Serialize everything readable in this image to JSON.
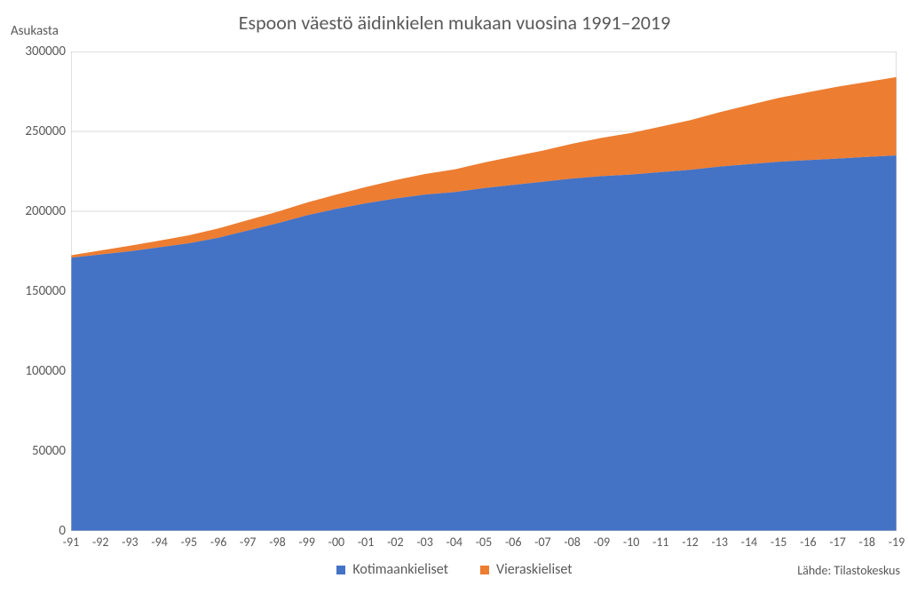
{
  "chart": {
    "type": "area-stacked",
    "title": "Espoon väestö äidinkielen mukaan vuosina 1991–2019",
    "title_fontsize": 22,
    "title_color": "#595959",
    "ylabel": "Asukasta",
    "ylabel_fontsize": 15,
    "ylabel_color": "#595959",
    "background_color": "#ffffff",
    "plot_border_color": "#bfbfbf",
    "grid_color": "#d9d9d9",
    "xtick_fontsize": 14,
    "ytick_fontsize": 15,
    "ylim": [
      0,
      300000
    ],
    "ytick_step": 50000,
    "yticks": [
      "0",
      "50000",
      "100000",
      "150000",
      "200000",
      "250000",
      "300000"
    ],
    "categories": [
      "-91",
      "-92",
      "-93",
      "-94",
      "-95",
      "-96",
      "-97",
      "-98",
      "-99",
      "-00",
      "-01",
      "-02",
      "-03",
      "-04",
      "-05",
      "-06",
      "-07",
      "-08",
      "-09",
      "-10",
      "-11",
      "-12",
      "-13",
      "-14",
      "-15",
      "-16",
      "-17",
      "-18",
      "-19"
    ],
    "series": [
      {
        "name": "Kotimaankieliset",
        "color": "#4472c4",
        "values": [
          171000,
          173000,
          175000,
          177500,
          180000,
          183500,
          188000,
          192500,
          197500,
          201500,
          205000,
          208000,
          210500,
          212000,
          214500,
          216500,
          218500,
          220500,
          222000,
          223000,
          224500,
          226000,
          228000,
          229500,
          231000,
          232000,
          233000,
          234000,
          235000
        ]
      },
      {
        "name": "Vieraskieliset",
        "color": "#ed7d31",
        "values": [
          1500,
          2500,
          3500,
          4200,
          5000,
          5800,
          6500,
          7200,
          8000,
          9000,
          10200,
          11500,
          12800,
          14200,
          16000,
          17800,
          19500,
          21800,
          24000,
          26000,
          28500,
          31000,
          34000,
          37000,
          40000,
          42500,
          45000,
          47000,
          49000
        ]
      }
    ],
    "legend_fontsize": 16,
    "source_label": "Lähde: Tilastokeskus",
    "source_fontsize": 14
  }
}
